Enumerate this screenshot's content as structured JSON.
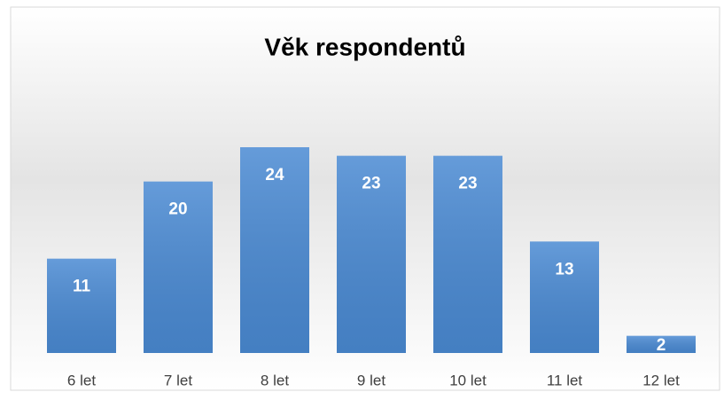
{
  "chart_data": {
    "type": "bar",
    "title": "Věk respondentů",
    "categories": [
      "6 let",
      "7 let",
      "8 let",
      "9 let",
      "10 let",
      "11 let",
      "12 let"
    ],
    "values": [
      11,
      20,
      24,
      23,
      23,
      13,
      2
    ],
    "color": "#4a8ad3",
    "ylim": [
      0,
      30
    ]
  }
}
